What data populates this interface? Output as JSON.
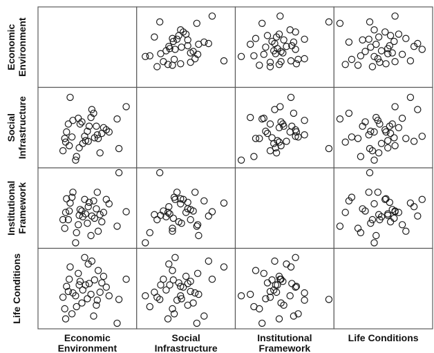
{
  "chart_data": {
    "type": "scatter",
    "title": "",
    "variables": [
      {
        "key": "econ",
        "label_lines": [
          "Economic",
          "Environment"
        ]
      },
      {
        "key": "social",
        "label_lines": [
          "Social",
          "Infrastructure"
        ]
      },
      {
        "key": "inst",
        "label_lines": [
          "Institutional",
          "Framework"
        ]
      },
      {
        "key": "life",
        "label_lines": [
          "Life Conditions"
        ]
      }
    ],
    "diagonal_empty": true,
    "marker": "open-circle",
    "point_color": "#1a1a1a",
    "grid_color": "#5a5a5a",
    "observations": [
      {
        "econ": 0.93,
        "social": 0.79,
        "inst": 0.45,
        "life": 0.63
      },
      {
        "econ": 0.85,
        "social": 0.21,
        "inst": 0.99,
        "life": 0.35
      },
      {
        "econ": 0.83,
        "social": 0.62,
        "inst": 0.25,
        "life": 0.02
      },
      {
        "econ": 0.74,
        "social": 0.44,
        "inst": 0.56,
        "life": 0.4
      },
      {
        "econ": 0.71,
        "social": 0.47,
        "inst": 0.62,
        "life": 0.52
      },
      {
        "econ": 0.68,
        "social": 0.5,
        "inst": 0.44,
        "life": 0.67
      },
      {
        "econ": 0.66,
        "social": 0.42,
        "inst": 0.31,
        "life": 0.58
      },
      {
        "econ": 0.64,
        "social": 0.15,
        "inst": 0.41,
        "life": 0.45
      },
      {
        "econ": 0.62,
        "social": 0.35,
        "inst": 0.18,
        "life": 0.75
      },
      {
        "econ": 0.61,
        "social": 0.4,
        "inst": 0.72,
        "life": 0.34
      },
      {
        "econ": 0.6,
        "social": 0.52,
        "inst": 0.49,
        "life": 0.27
      },
      {
        "econ": 0.58,
        "social": 0.36,
        "inst": 0.36,
        "life": 0.62
      },
      {
        "econ": 0.57,
        "social": 0.7,
        "inst": 0.6,
        "life": 0.12
      },
      {
        "econ": 0.55,
        "social": 0.75,
        "inst": 0.39,
        "life": 0.88
      },
      {
        "econ": 0.54,
        "social": 0.64,
        "inst": 0.12,
        "life": 0.42
      },
      {
        "econ": 0.52,
        "social": 0.52,
        "inst": 0.58,
        "life": 0.57
      },
      {
        "econ": 0.51,
        "social": 0.31,
        "inst": 0.52,
        "life": 0.84
      },
      {
        "econ": 0.5,
        "social": 0.45,
        "inst": 0.29,
        "life": 0.36
      },
      {
        "econ": 0.48,
        "social": 0.32,
        "inst": 0.42,
        "life": 0.55
      },
      {
        "econ": 0.47,
        "social": 0.38,
        "inst": 0.62,
        "life": 0.93
      },
      {
        "econ": 0.45,
        "social": 0.28,
        "inst": 0.38,
        "life": 0.48
      },
      {
        "econ": 0.44,
        "social": 0.58,
        "inst": 0.46,
        "life": 0.3
      },
      {
        "econ": 0.42,
        "social": 0.55,
        "inst": 0.48,
        "life": 0.6
      },
      {
        "econ": 0.41,
        "social": 0.22,
        "inst": 0.4,
        "life": 0.55
      },
      {
        "econ": 0.4,
        "social": 0.63,
        "inst": 0.27,
        "life": 0.71
      },
      {
        "econ": 0.38,
        "social": 0.1,
        "inst": 0.16,
        "life": 0.25
      },
      {
        "econ": 0.37,
        "social": 0.05,
        "inst": 0.02,
        "life": 0.4
      },
      {
        "econ": 0.34,
        "social": 0.6,
        "inst": 0.72,
        "life": 0.44
      },
      {
        "econ": 0.33,
        "social": 0.37,
        "inst": 0.65,
        "life": 0.15
      },
      {
        "econ": 0.31,
        "social": 0.92,
        "inst": 0.57,
        "life": 0.8
      },
      {
        "econ": 0.3,
        "social": 0.25,
        "inst": 0.46,
        "life": 0.63
      },
      {
        "econ": 0.29,
        "social": 0.55,
        "inst": 0.34,
        "life": 0.46
      },
      {
        "econ": 0.27,
        "social": 0.44,
        "inst": 0.63,
        "life": 0.53
      },
      {
        "econ": 0.26,
        "social": 0.3,
        "inst": 0.44,
        "life": 0.08
      },
      {
        "econ": 0.25,
        "social": 0.35,
        "inst": 0.22,
        "life": 0.22
      },
      {
        "econ": 0.23,
        "social": 0.18,
        "inst": 0.34,
        "life": 0.38
      }
    ]
  }
}
